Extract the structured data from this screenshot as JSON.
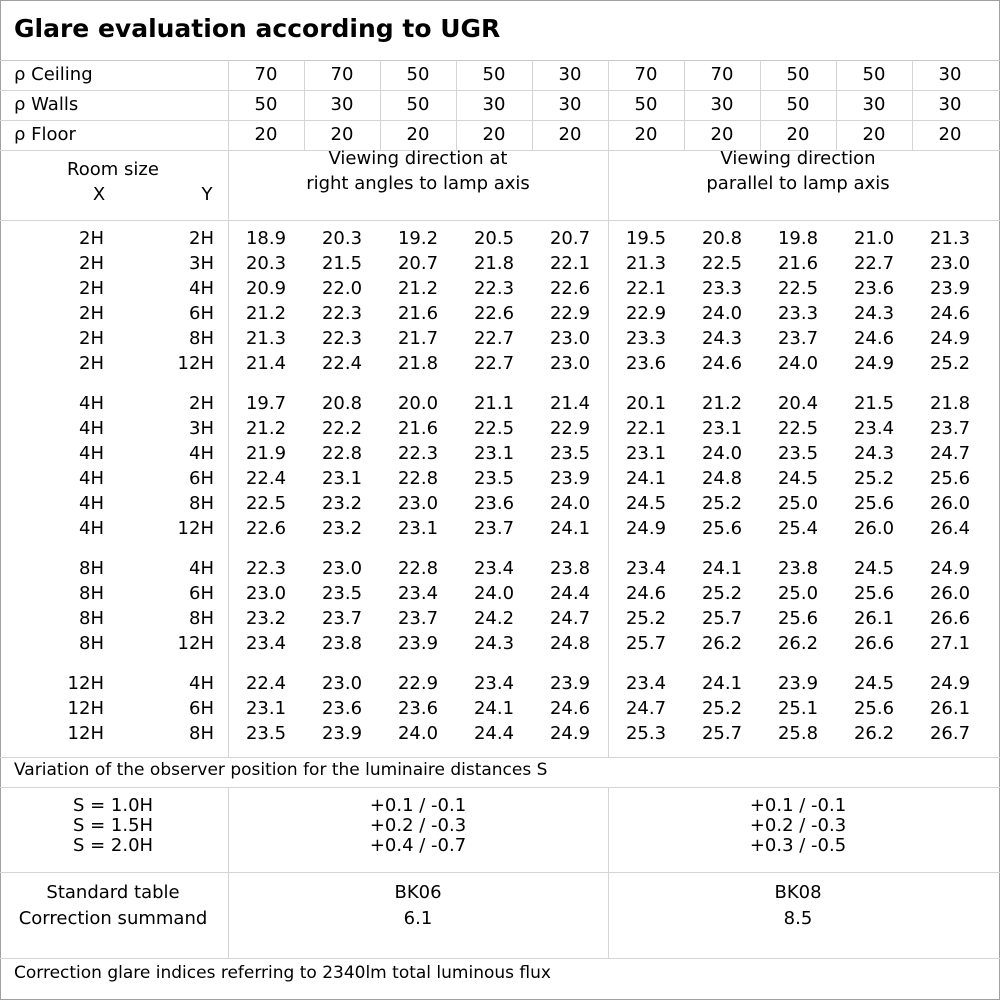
{
  "title": "Glare evaluation according to UGR",
  "reflectances": [
    {
      "label": "ρ Ceiling",
      "values": [
        "70",
        "70",
        "50",
        "50",
        "30",
        "70",
        "70",
        "50",
        "50",
        "30"
      ]
    },
    {
      "label": "ρ Walls",
      "values": [
        "50",
        "30",
        "50",
        "30",
        "30",
        "50",
        "30",
        "50",
        "30",
        "30"
      ]
    },
    {
      "label": "ρ Floor",
      "values": [
        "20",
        "20",
        "20",
        "20",
        "20",
        "20",
        "20",
        "20",
        "20",
        "20"
      ]
    }
  ],
  "header": {
    "room_size": "Room size",
    "x_label": "X",
    "y_label": "Y",
    "direction_right_angles": [
      "Viewing direction at",
      "right angles to lamp axis"
    ],
    "direction_parallel": [
      "Viewing direction",
      "parallel to lamp axis"
    ]
  },
  "groups": [
    {
      "rows": [
        {
          "x": "2H",
          "y": "2H",
          "values": [
            "18.9",
            "20.3",
            "19.2",
            "20.5",
            "20.7",
            "19.5",
            "20.8",
            "19.8",
            "21.0",
            "21.3"
          ]
        },
        {
          "x": "2H",
          "y": "3H",
          "values": [
            "20.3",
            "21.5",
            "20.7",
            "21.8",
            "22.1",
            "21.3",
            "22.5",
            "21.6",
            "22.7",
            "23.0"
          ]
        },
        {
          "x": "2H",
          "y": "4H",
          "values": [
            "20.9",
            "22.0",
            "21.2",
            "22.3",
            "22.6",
            "22.1",
            "23.3",
            "22.5",
            "23.6",
            "23.9"
          ]
        },
        {
          "x": "2H",
          "y": "6H",
          "values": [
            "21.2",
            "22.3",
            "21.6",
            "22.6",
            "22.9",
            "22.9",
            "24.0",
            "23.3",
            "24.3",
            "24.6"
          ]
        },
        {
          "x": "2H",
          "y": "8H",
          "values": [
            "21.3",
            "22.3",
            "21.7",
            "22.7",
            "23.0",
            "23.3",
            "24.3",
            "23.7",
            "24.6",
            "24.9"
          ]
        },
        {
          "x": "2H",
          "y": "12H",
          "values": [
            "21.4",
            "22.4",
            "21.8",
            "22.7",
            "23.0",
            "23.6",
            "24.6",
            "24.0",
            "24.9",
            "25.2"
          ]
        }
      ]
    },
    {
      "rows": [
        {
          "x": "4H",
          "y": "2H",
          "values": [
            "19.7",
            "20.8",
            "20.0",
            "21.1",
            "21.4",
            "20.1",
            "21.2",
            "20.4",
            "21.5",
            "21.8"
          ]
        },
        {
          "x": "4H",
          "y": "3H",
          "values": [
            "21.2",
            "22.2",
            "21.6",
            "22.5",
            "22.9",
            "22.1",
            "23.1",
            "22.5",
            "23.4",
            "23.7"
          ]
        },
        {
          "x": "4H",
          "y": "4H",
          "values": [
            "21.9",
            "22.8",
            "22.3",
            "23.1",
            "23.5",
            "23.1",
            "24.0",
            "23.5",
            "24.3",
            "24.7"
          ]
        },
        {
          "x": "4H",
          "y": "6H",
          "values": [
            "22.4",
            "23.1",
            "22.8",
            "23.5",
            "23.9",
            "24.1",
            "24.8",
            "24.5",
            "25.2",
            "25.6"
          ]
        },
        {
          "x": "4H",
          "y": "8H",
          "values": [
            "22.5",
            "23.2",
            "23.0",
            "23.6",
            "24.0",
            "24.5",
            "25.2",
            "25.0",
            "25.6",
            "26.0"
          ]
        },
        {
          "x": "4H",
          "y": "12H",
          "values": [
            "22.6",
            "23.2",
            "23.1",
            "23.7",
            "24.1",
            "24.9",
            "25.6",
            "25.4",
            "26.0",
            "26.4"
          ]
        }
      ]
    },
    {
      "rows": [
        {
          "x": "8H",
          "y": "4H",
          "values": [
            "22.3",
            "23.0",
            "22.8",
            "23.4",
            "23.8",
            "23.4",
            "24.1",
            "23.8",
            "24.5",
            "24.9"
          ]
        },
        {
          "x": "8H",
          "y": "6H",
          "values": [
            "23.0",
            "23.5",
            "23.4",
            "24.0",
            "24.4",
            "24.6",
            "25.2",
            "25.0",
            "25.6",
            "26.0"
          ]
        },
        {
          "x": "8H",
          "y": "8H",
          "values": [
            "23.2",
            "23.7",
            "23.7",
            "24.2",
            "24.7",
            "25.2",
            "25.7",
            "25.6",
            "26.1",
            "26.6"
          ]
        },
        {
          "x": "8H",
          "y": "12H",
          "values": [
            "23.4",
            "23.8",
            "23.9",
            "24.3",
            "24.8",
            "25.7",
            "26.2",
            "26.2",
            "26.6",
            "27.1"
          ]
        }
      ]
    },
    {
      "rows": [
        {
          "x": "12H",
          "y": "4H",
          "values": [
            "22.4",
            "23.0",
            "22.9",
            "23.4",
            "23.9",
            "23.4",
            "24.1",
            "23.9",
            "24.5",
            "24.9"
          ]
        },
        {
          "x": "12H",
          "y": "6H",
          "values": [
            "23.1",
            "23.6",
            "23.6",
            "24.1",
            "24.6",
            "24.7",
            "25.2",
            "25.1",
            "25.6",
            "26.1"
          ]
        },
        {
          "x": "12H",
          "y": "8H",
          "values": [
            "23.5",
            "23.9",
            "24.0",
            "24.4",
            "24.9",
            "25.3",
            "25.7",
            "25.8",
            "26.2",
            "26.7"
          ]
        }
      ]
    }
  ],
  "variation": {
    "label": "Variation of the observer position for the luminaire distances S",
    "rows": [
      {
        "s": "S = 1.0H",
        "right_angles": "+0.1 / -0.1",
        "parallel": "+0.1 / -0.1"
      },
      {
        "s": "S = 1.5H",
        "right_angles": "+0.2 / -0.3",
        "parallel": "+0.2 / -0.3"
      },
      {
        "s": "S = 2.0H",
        "right_angles": "+0.4 / -0.7",
        "parallel": "+0.3 / -0.5"
      }
    ]
  },
  "standard": {
    "standard_table_label": "Standard table",
    "correction_label": "Correction summand",
    "right_angles": {
      "table": "BK06",
      "summand": "6.1"
    },
    "parallel": {
      "table": "BK08",
      "summand": "8.5"
    }
  },
  "footer": "Correction glare indices referring to 2340lm total luminous flux"
}
